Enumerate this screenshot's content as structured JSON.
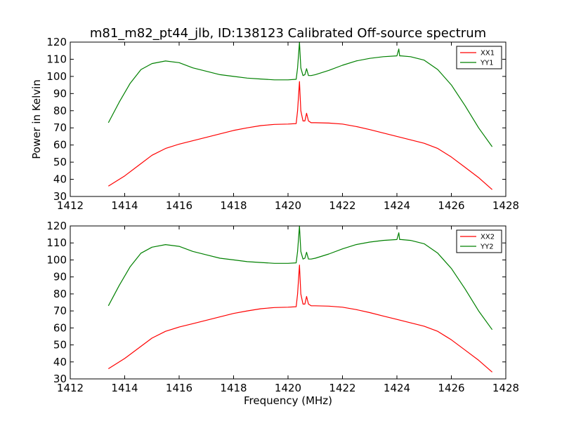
{
  "figure_title": "m81_m82_pt44_jlb, ID:138123 Calibrated Off-source spectrum",
  "chart_data": [
    {
      "type": "line",
      "xlabel": "",
      "ylabel": "Power in Kelvin",
      "xlim": [
        1412,
        1428
      ],
      "ylim": [
        30,
        120
      ],
      "xticks": [
        1412,
        1414,
        1416,
        1418,
        1420,
        1422,
        1424,
        1426,
        1428
      ],
      "yticks": [
        30,
        40,
        50,
        60,
        70,
        80,
        90,
        100,
        110,
        120
      ],
      "grid": false,
      "legend_position": "top-right",
      "series": [
        {
          "name": "XX1",
          "color": "#ff0000",
          "x": [
            1413.4,
            1414.0,
            1414.5,
            1415.0,
            1415.5,
            1416.0,
            1416.5,
            1417.0,
            1417.5,
            1418.0,
            1418.5,
            1419.0,
            1419.5,
            1420.0,
            1420.3,
            1420.35,
            1420.42,
            1420.47,
            1420.55,
            1420.62,
            1420.68,
            1420.75,
            1420.85,
            1421.0,
            1421.5,
            1422.0,
            1422.5,
            1423.0,
            1423.5,
            1424.0,
            1424.5,
            1425.0,
            1425.5,
            1426.0,
            1426.5,
            1427.0,
            1427.5
          ],
          "y": [
            36,
            42,
            48,
            54,
            58,
            60.5,
            62.5,
            64.5,
            66.5,
            68.5,
            70,
            71.3,
            72,
            72.2,
            72.5,
            80,
            97,
            80,
            74,
            74,
            78.5,
            74,
            73,
            73,
            72.8,
            72.2,
            70.8,
            69,
            67,
            65,
            63,
            61,
            58,
            53,
            47,
            41,
            34
          ]
        },
        {
          "name": "YY1",
          "color": "#008000",
          "x": [
            1413.4,
            1413.8,
            1414.2,
            1414.6,
            1415.0,
            1415.5,
            1416.0,
            1416.5,
            1417.0,
            1417.5,
            1418.0,
            1418.5,
            1419.0,
            1419.5,
            1420.0,
            1420.3,
            1420.35,
            1420.42,
            1420.47,
            1420.55,
            1420.62,
            1420.68,
            1420.75,
            1420.85,
            1421.0,
            1421.5,
            1422.0,
            1422.5,
            1423.0,
            1423.5,
            1424.0,
            1424.07,
            1424.1,
            1424.15,
            1424.5,
            1425.0,
            1425.5,
            1426.0,
            1426.5,
            1427.0,
            1427.5
          ],
          "y": [
            73,
            85,
            96,
            104,
            107.5,
            109,
            108,
            105,
            103,
            101,
            100,
            99,
            98.5,
            98,
            98,
            98.3,
            105,
            120,
            105,
            100.5,
            101,
            104.5,
            100.5,
            100.5,
            101,
            103.5,
            106.5,
            109,
            110.5,
            111.5,
            112,
            116,
            112,
            112,
            111.5,
            109.5,
            104,
            95,
            83,
            70,
            59
          ]
        }
      ]
    },
    {
      "type": "line",
      "xlabel": "Frequency (MHz)",
      "ylabel": "",
      "xlim": [
        1412,
        1428
      ],
      "ylim": [
        30,
        120
      ],
      "xticks": [
        1412,
        1414,
        1416,
        1418,
        1420,
        1422,
        1424,
        1426,
        1428
      ],
      "yticks": [
        30,
        40,
        50,
        60,
        70,
        80,
        90,
        100,
        110,
        120
      ],
      "grid": false,
      "legend_position": "top-right",
      "series": [
        {
          "name": "XX2",
          "color": "#ff0000",
          "x": [
            1413.4,
            1414.0,
            1414.5,
            1415.0,
            1415.5,
            1416.0,
            1416.5,
            1417.0,
            1417.5,
            1418.0,
            1418.5,
            1419.0,
            1419.5,
            1420.0,
            1420.3,
            1420.35,
            1420.42,
            1420.47,
            1420.55,
            1420.62,
            1420.68,
            1420.75,
            1420.85,
            1421.0,
            1421.5,
            1422.0,
            1422.5,
            1423.0,
            1423.5,
            1424.0,
            1424.5,
            1425.0,
            1425.5,
            1426.0,
            1426.5,
            1427.0,
            1427.5
          ],
          "y": [
            36,
            42,
            48,
            54,
            58,
            60.5,
            62.5,
            64.5,
            66.5,
            68.5,
            70,
            71.3,
            72,
            72.2,
            72.5,
            80,
            97,
            80,
            74,
            74,
            78.5,
            74,
            73,
            73,
            72.8,
            72.2,
            70.8,
            69,
            67,
            65,
            63,
            61,
            58,
            53,
            47,
            41,
            34
          ]
        },
        {
          "name": "YY2",
          "color": "#008000",
          "x": [
            1413.4,
            1413.8,
            1414.2,
            1414.6,
            1415.0,
            1415.5,
            1416.0,
            1416.5,
            1417.0,
            1417.5,
            1418.0,
            1418.5,
            1419.0,
            1419.5,
            1420.0,
            1420.3,
            1420.35,
            1420.42,
            1420.47,
            1420.55,
            1420.62,
            1420.68,
            1420.75,
            1420.85,
            1421.0,
            1421.5,
            1422.0,
            1422.5,
            1423.0,
            1423.5,
            1424.0,
            1424.07,
            1424.1,
            1424.15,
            1424.5,
            1425.0,
            1425.5,
            1426.0,
            1426.5,
            1427.0,
            1427.5
          ],
          "y": [
            73,
            85,
            96,
            104,
            107.5,
            109,
            108,
            105,
            103,
            101,
            100,
            99,
            98.5,
            98,
            98,
            98.3,
            105,
            120,
            105,
            100.5,
            101,
            104.5,
            100.5,
            100.5,
            101,
            103.5,
            106.5,
            109,
            110.5,
            111.5,
            112,
            116,
            112,
            112,
            111.5,
            109.5,
            104,
            95,
            83,
            70,
            59
          ]
        }
      ]
    }
  ]
}
